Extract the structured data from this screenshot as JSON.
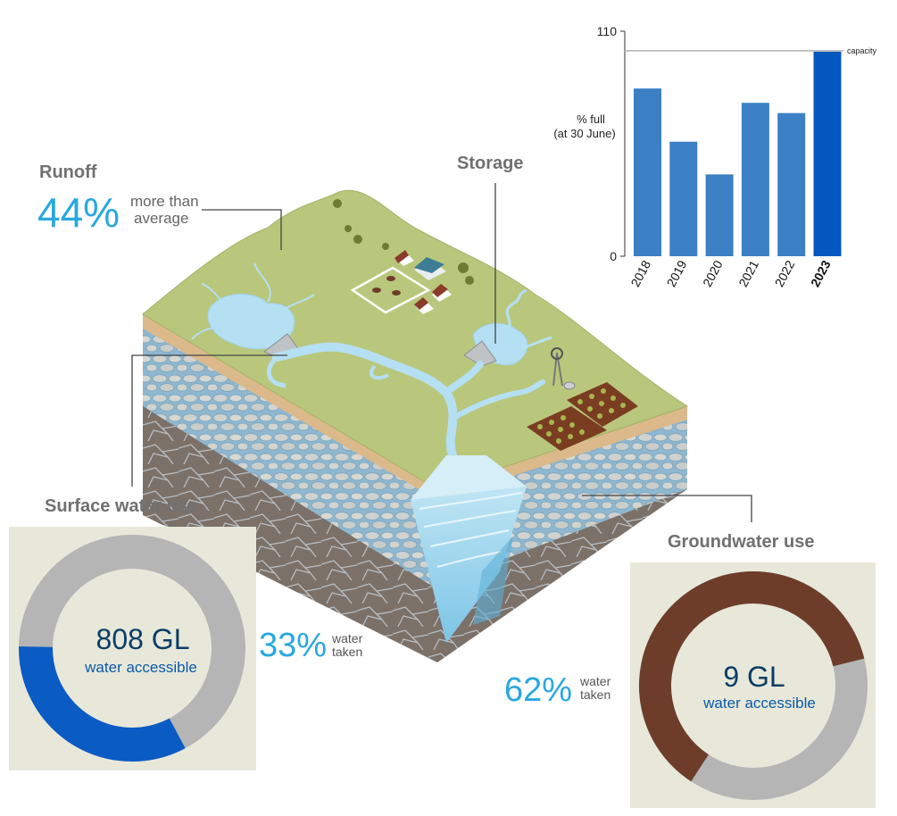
{
  "runoff": {
    "heading": "Runoff",
    "percent": "44%",
    "note_line1": "more than",
    "note_line2": "average"
  },
  "storage": {
    "heading": "Storage"
  },
  "surface_water": {
    "heading": "Surface water use",
    "value": "808 GL",
    "sublabel": "water accessible",
    "taken_percent": "33%",
    "taken_line1": "water",
    "taken_line2": "taken",
    "taken_fraction": 0.33,
    "colors": {
      "taken": "#0a5bc4",
      "remaining": "#b5b5b5",
      "panel": "#e8e8da"
    }
  },
  "groundwater": {
    "heading": "Groundwater use",
    "value": "9 GL",
    "sublabel": "water accessible",
    "taken_percent": "62%",
    "taken_line1": "water",
    "taken_line2": "taken",
    "taken_fraction": 0.62,
    "colors": {
      "taken": "#6e3d2a",
      "remaining": "#b5b5b5",
      "panel": "#e8e8da"
    }
  },
  "chart_data": {
    "type": "bar",
    "ylabel_line1": "% full",
    "ylabel_line2": "(at 30 June)",
    "ylim": [
      0,
      110
    ],
    "yticks": [
      "0",
      "110"
    ],
    "categories": [
      "2018",
      "2019",
      "2020",
      "2021",
      "2022",
      "2023"
    ],
    "values": [
      82,
      56,
      40,
      75,
      70,
      100
    ],
    "highlight": "2023",
    "reference_line": {
      "value": 100,
      "label": "capacity"
    },
    "colors": {
      "bar": "#3b80c4",
      "highlight": "#0558c0"
    }
  }
}
